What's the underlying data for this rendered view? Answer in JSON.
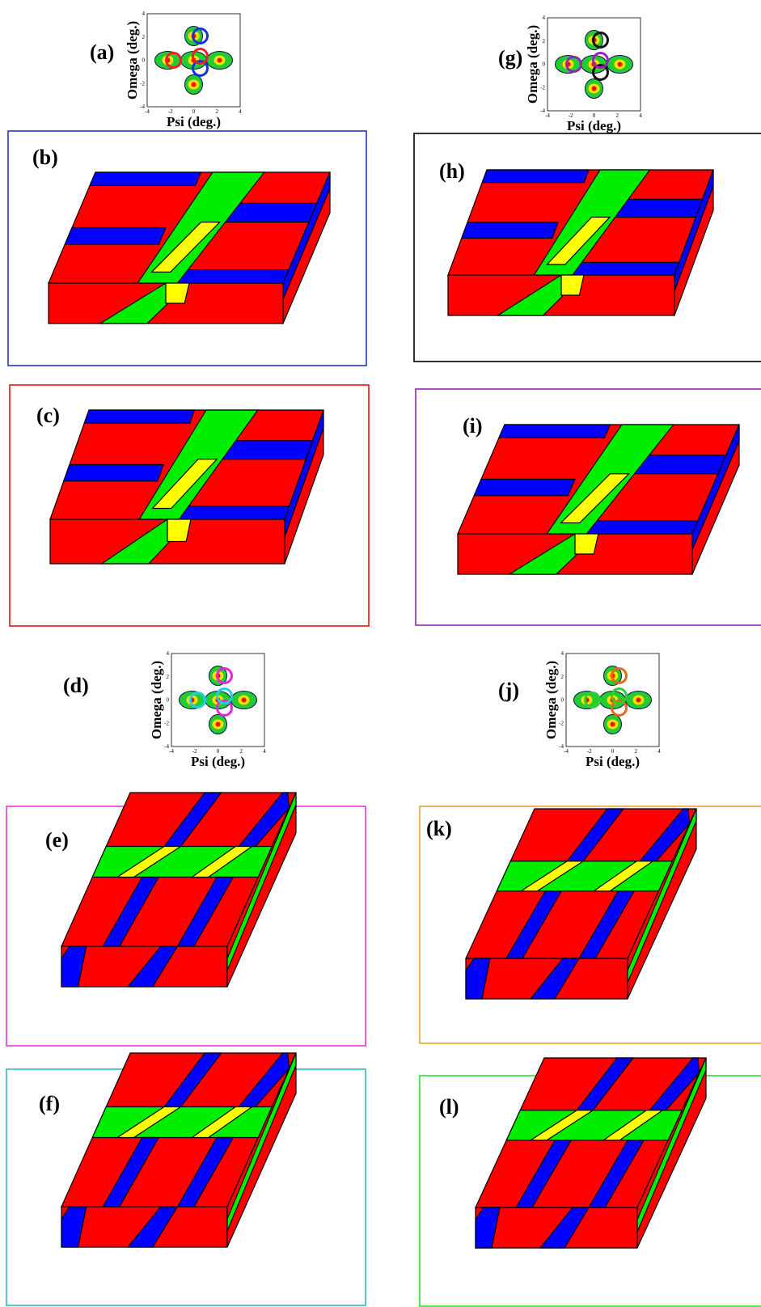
{
  "panels": [
    {
      "label": "(a)"
    },
    {
      "label": "(b)"
    },
    {
      "label": "(c)"
    },
    {
      "label": "(d)"
    },
    {
      "label": "(e)"
    },
    {
      "label": "(f)"
    },
    {
      "label": "(g)"
    },
    {
      "label": "(h)"
    },
    {
      "label": "(i)"
    },
    {
      "label": "(j)"
    },
    {
      "label": "(k)"
    },
    {
      "label": "(l)"
    }
  ],
  "insets": [
    {
      "ylabel": "Omega (deg.)",
      "xlabel": "Psi (deg.)",
      "ticks": [
        -4,
        -2,
        0,
        2,
        4
      ]
    },
    {
      "ylabel": "Omega (deg.)",
      "xlabel": "Psi (deg.)",
      "ticks": [
        -4,
        -2,
        0,
        2,
        4
      ]
    },
    {
      "ylabel": "Omega (deg.)",
      "xlabel": "Psi (deg.)",
      "ticks": [
        -4,
        -2,
        0,
        2,
        4
      ]
    },
    {
      "ylabel": "Omega (deg.)",
      "xlabel": "Psi (deg.)",
      "ticks": [
        -4,
        -2,
        0,
        2,
        4
      ]
    }
  ]
}
